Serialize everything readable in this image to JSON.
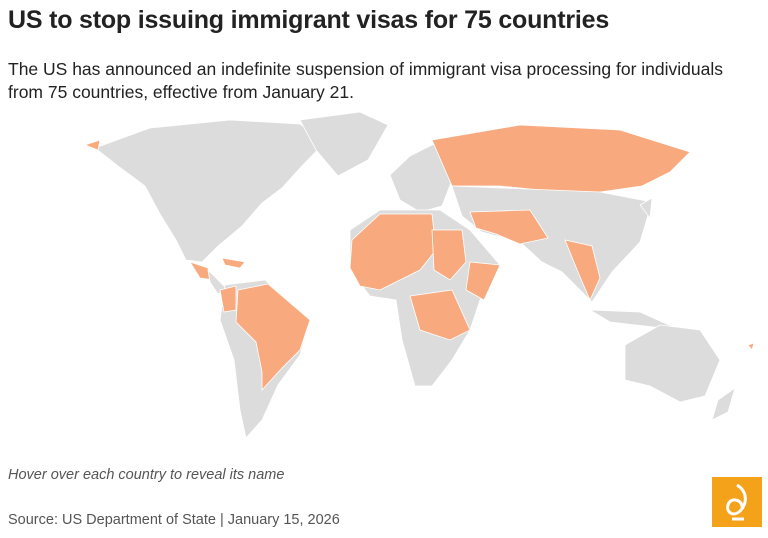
{
  "header": {
    "title": "US to stop issuing immigrant visas for 75 countries",
    "subtitle": "The US has announced an indefinite suspension of immigrant visa processing for individuals from 75 countries, effective from January 21."
  },
  "footer": {
    "note": "Hover over each country to reveal its name",
    "source": "Source: US Department of State | January 15, 2026"
  }
}
